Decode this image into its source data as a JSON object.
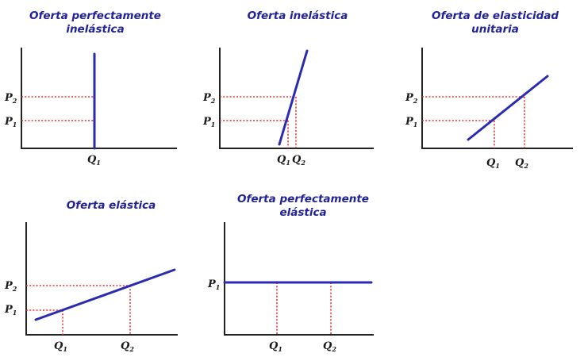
{
  "panels": [
    {
      "title_1": "Oferta perfectamente",
      "title_2": "inelástica",
      "p_top": "P",
      "p_top_sub": "2",
      "p_bot": "P",
      "p_bot_sub": "1",
      "q": "Q",
      "q_sub": "1"
    },
    {
      "title_1": "Oferta inelástica",
      "p_top": "P",
      "p_top_sub": "2",
      "p_bot": "P",
      "p_bot_sub": "1",
      "q1": "Q",
      "q1_sub": "1",
      "q2": "Q",
      "q2_sub": "2"
    },
    {
      "title_1": "Oferta de elasticidad",
      "title_2": "unitaria",
      "p_top": "P",
      "p_top_sub": "2",
      "p_bot": "P",
      "p_bot_sub": "1",
      "q1": "Q",
      "q1_sub": "1",
      "q2": "Q",
      "q2_sub": "2"
    },
    {
      "title_1": "Oferta elástica",
      "p_top": "P",
      "p_top_sub": "2",
      "p_bot": "P",
      "p_bot_sub": "1",
      "q1": "Q",
      "q1_sub": "1",
      "q2": "Q",
      "q2_sub": "2"
    },
    {
      "title_1": "Oferta perfectamente",
      "title_2": "elástica",
      "p": "P",
      "p_sub": "1",
      "q1": "Q",
      "q1_sub": "1",
      "q2": "Q",
      "q2_sub": "2"
    }
  ],
  "colors": {
    "curve": "#2b2bb0",
    "guide": "#ee3030",
    "title": "#22229a",
    "axis": "#222222"
  }
}
